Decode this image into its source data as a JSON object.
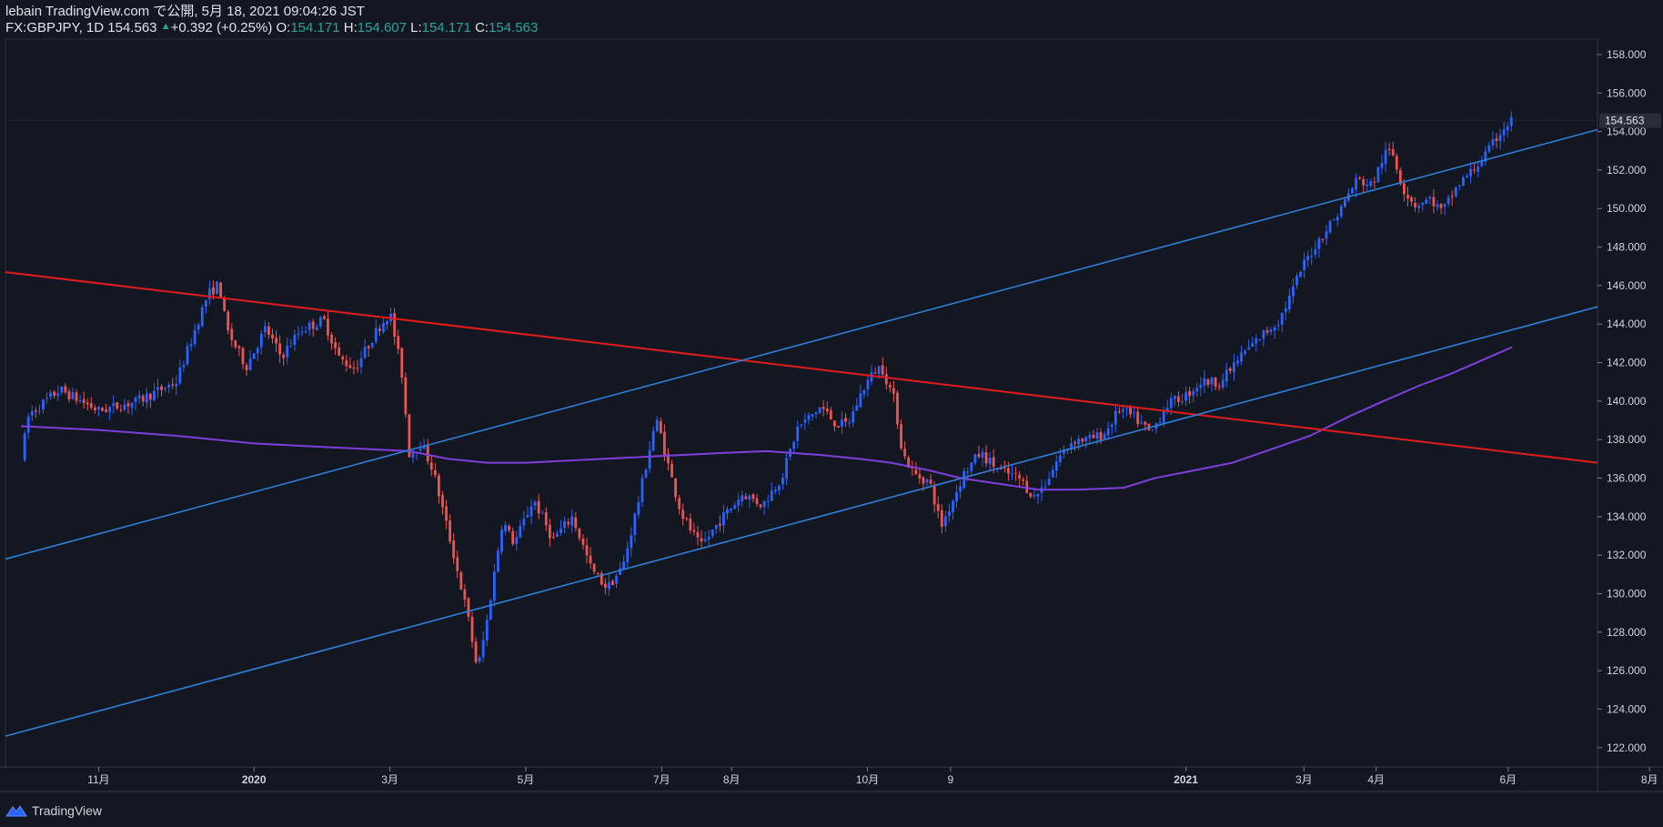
{
  "header": {
    "publish_line": "lebain TradingView.com で公開, 5月 18, 2021 09:04:26 JST",
    "symbol": "FX:GBPJPY, 1D",
    "last": "154.563",
    "change_arrow": "▲",
    "change": "+0.392 (+0.25%)",
    "o_label": "O:",
    "o": "154.171",
    "h_label": "H:",
    "h": "154.607",
    "l_label": "L:",
    "l": "154.171",
    "c_label": "C:",
    "c": "154.563"
  },
  "footer": {
    "brand": "TradingView",
    "logo_icon": "tradingview-logo-icon"
  },
  "colors": {
    "background": "#131722",
    "grid": "#2a2e39",
    "axis_text": "#d1d4dc",
    "up": "#2962ff",
    "down": "#ef5350",
    "ma": "#7e3fdd",
    "trend_red": "#e31b1b",
    "trend_blue": "#2f7ed8",
    "accent_green": "#26a69a"
  },
  "chart_data": {
    "type": "candlestick",
    "symbol": "FX:GBPJPY",
    "interval": "1D",
    "x_unit": "month_index",
    "x_unit_note": "months since 2019-10-01 (0 = Oct 1 2019, 3 = Jan 1 2020, 15 = Jan 1 2021)",
    "xlim": [
      -0.2,
      20.3
    ],
    "ylim": [
      121.0,
      158.8
    ],
    "y_ticks": [
      122,
      124,
      126,
      128,
      130,
      132,
      134,
      136,
      138,
      140,
      142,
      144,
      146,
      148,
      150,
      152,
      154,
      156,
      158
    ],
    "y_tick_labels": [
      "122.000",
      "124.000",
      "126.000",
      "128.000",
      "130.000",
      "132.000",
      "134.000",
      "136.000",
      "138.000",
      "140.000",
      "142.000",
      "144.000",
      "146.000",
      "148.000",
      "150.000",
      "152.000",
      "154.000",
      "156.000",
      "158.000"
    ],
    "x_ticks": [
      {
        "x": 1.0,
        "label": "11月"
      },
      {
        "x": 3.0,
        "label": "2020"
      },
      {
        "x": 4.75,
        "label": "3月"
      },
      {
        "x": 6.5,
        "label": "5月"
      },
      {
        "x": 8.25,
        "label": "7月"
      },
      {
        "x": 9.15,
        "label": "8月"
      },
      {
        "x": 10.9,
        "label": "10月"
      },
      {
        "x": 11.97,
        "label": "9"
      },
      {
        "x": 15.0,
        "label": "2021"
      },
      {
        "x": 16.52,
        "label": "3月"
      },
      {
        "x": 17.45,
        "label": "4月"
      },
      {
        "x": 19.15,
        "label": "6月"
      },
      {
        "x": 20.97,
        "label": "8月"
      }
    ],
    "bold_ticks": [
      "2020",
      "2021"
    ],
    "last_price": 154.563,
    "last_price_label": "154.563",
    "price_anchors": [
      [
        0.0,
        137.0
      ],
      [
        0.1,
        139.3
      ],
      [
        0.5,
        140.6
      ],
      [
        1.0,
        139.5
      ],
      [
        1.5,
        140.0
      ],
      [
        2.0,
        141.0
      ],
      [
        2.4,
        145.5
      ],
      [
        2.55,
        146.1
      ],
      [
        2.65,
        143.7
      ],
      [
        2.9,
        141.8
      ],
      [
        3.15,
        143.8
      ],
      [
        3.35,
        142.3
      ],
      [
        3.6,
        143.7
      ],
      [
        3.9,
        144.2
      ],
      [
        4.1,
        142.2
      ],
      [
        4.3,
        141.7
      ],
      [
        4.6,
        143.8
      ],
      [
        4.75,
        144.6
      ],
      [
        4.9,
        141.6
      ],
      [
        5.0,
        137.3
      ],
      [
        5.15,
        137.8
      ],
      [
        5.3,
        136.5
      ],
      [
        5.55,
        132.4
      ],
      [
        5.75,
        128.9
      ],
      [
        5.88,
        126.0
      ],
      [
        6.0,
        128.6
      ],
      [
        6.2,
        133.8
      ],
      [
        6.35,
        132.6
      ],
      [
        6.6,
        134.9
      ],
      [
        6.85,
        132.8
      ],
      [
        7.1,
        134.0
      ],
      [
        7.35,
        131.2
      ],
      [
        7.55,
        130.3
      ],
      [
        7.75,
        131.4
      ],
      [
        7.95,
        134.8
      ],
      [
        8.15,
        138.6
      ],
      [
        8.2,
        138.9
      ],
      [
        8.35,
        136.4
      ],
      [
        8.5,
        134.2
      ],
      [
        8.75,
        132.4
      ],
      [
        9.0,
        133.8
      ],
      [
        9.3,
        135.2
      ],
      [
        9.55,
        134.6
      ],
      [
        9.8,
        136.1
      ],
      [
        10.0,
        138.6
      ],
      [
        10.3,
        139.7
      ],
      [
        10.5,
        138.8
      ],
      [
        10.65,
        138.8
      ],
      [
        10.85,
        140.7
      ],
      [
        11.0,
        141.6
      ],
      [
        11.08,
        141.8
      ],
      [
        11.25,
        140.0
      ],
      [
        11.35,
        137.3
      ],
      [
        11.5,
        136.2
      ],
      [
        11.7,
        135.8
      ],
      [
        11.85,
        133.5
      ],
      [
        12.0,
        134.9
      ],
      [
        12.15,
        136.3
      ],
      [
        12.35,
        137.3
      ],
      [
        12.6,
        136.4
      ],
      [
        12.85,
        136.0
      ],
      [
        13.05,
        135.0
      ],
      [
        13.2,
        135.8
      ],
      [
        13.35,
        137.0
      ],
      [
        13.55,
        138.0
      ],
      [
        13.75,
        138.0
      ],
      [
        13.95,
        138.3
      ],
      [
        14.15,
        139.6
      ],
      [
        14.35,
        139.1
      ],
      [
        14.55,
        138.3
      ],
      [
        14.75,
        139.8
      ],
      [
        15.0,
        140.3
      ],
      [
        15.2,
        141.0
      ],
      [
        15.45,
        141.0
      ],
      [
        15.7,
        142.3
      ],
      [
        16.0,
        143.5
      ],
      [
        16.2,
        144.2
      ],
      [
        16.35,
        145.5
      ],
      [
        16.5,
        147.0
      ],
      [
        16.75,
        148.6
      ],
      [
        16.95,
        149.7
      ],
      [
        17.2,
        151.5
      ],
      [
        17.4,
        151.2
      ],
      [
        17.55,
        152.8
      ],
      [
        17.65,
        153.0
      ],
      [
        17.8,
        151.0
      ],
      [
        17.95,
        150.2
      ],
      [
        18.15,
        150.5
      ],
      [
        18.3,
        149.8
      ],
      [
        18.5,
        151.2
      ],
      [
        18.7,
        152.0
      ],
      [
        18.9,
        153.0
      ],
      [
        19.05,
        154.0
      ],
      [
        19.2,
        154.6
      ]
    ],
    "moving_average": {
      "name": "200-day MA",
      "points": [
        [
          0.0,
          138.7
        ],
        [
          1.0,
          138.5
        ],
        [
          2.0,
          138.2
        ],
        [
          3.0,
          137.8
        ],
        [
          4.0,
          137.6
        ],
        [
          4.5,
          137.5
        ],
        [
          5.0,
          137.4
        ],
        [
          5.5,
          137.0
        ],
        [
          6.0,
          136.8
        ],
        [
          6.5,
          136.8
        ],
        [
          7.0,
          136.9
        ],
        [
          7.5,
          137.0
        ],
        [
          8.0,
          137.1
        ],
        [
          8.5,
          137.2
        ],
        [
          9.0,
          137.3
        ],
        [
          9.6,
          137.4
        ],
        [
          10.3,
          137.2
        ],
        [
          10.8,
          137.0
        ],
        [
          11.2,
          136.8
        ],
        [
          11.7,
          136.4
        ],
        [
          12.1,
          136.0
        ],
        [
          12.6,
          135.7
        ],
        [
          13.1,
          135.4
        ],
        [
          13.6,
          135.4
        ],
        [
          14.2,
          135.5
        ],
        [
          14.6,
          136.0
        ],
        [
          15.1,
          136.4
        ],
        [
          15.6,
          136.8
        ],
        [
          16.1,
          137.5
        ],
        [
          16.6,
          138.2
        ],
        [
          17.1,
          139.2
        ],
        [
          17.6,
          140.1
        ],
        [
          18.0,
          140.8
        ],
        [
          18.4,
          141.4
        ],
        [
          18.8,
          142.1
        ],
        [
          19.2,
          142.8
        ]
      ]
    },
    "trendlines": [
      {
        "name": "red-resistance-line",
        "color": "#e31b1b",
        "x1": -0.2,
        "y1": 146.7,
        "x2": 20.3,
        "y2": 136.8
      },
      {
        "name": "blue-channel-upper-line",
        "color": "#2f7ed8",
        "x1": -0.2,
        "y1": 131.8,
        "x2": 20.3,
        "y2": 154.1
      },
      {
        "name": "blue-channel-lower-line",
        "color": "#2f7ed8",
        "x1": -0.2,
        "y1": 122.6,
        "x2": 20.3,
        "y2": 144.9
      }
    ]
  }
}
